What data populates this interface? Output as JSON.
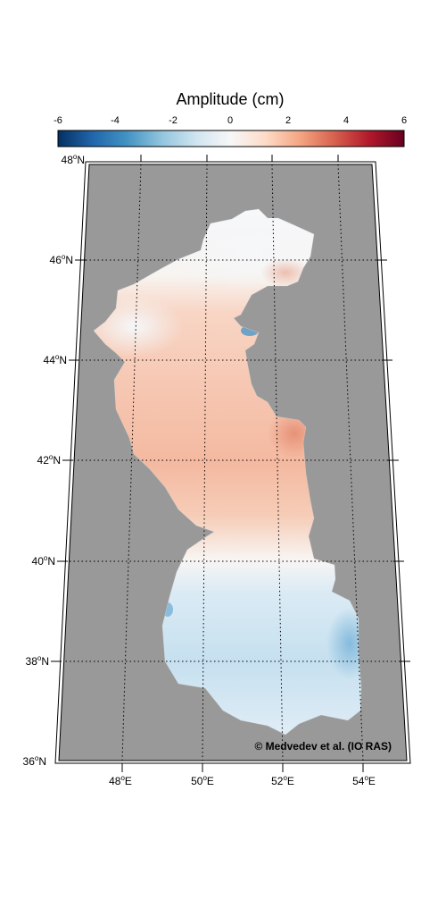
{
  "colorbar": {
    "title": "Amplitude (cm)",
    "ticks": [
      "-6",
      "-4",
      "-2",
      "0",
      "2",
      "4",
      "6"
    ],
    "colors": [
      "#053061",
      "#2166ac",
      "#4393c3",
      "#92c5de",
      "#d1e5f0",
      "#f7f7f7",
      "#fddbc7",
      "#f4a582",
      "#d6604d",
      "#b2182b",
      "#67001f"
    ]
  },
  "map": {
    "latitudes": [
      {
        "deg": "48",
        "hem": "N"
      },
      {
        "deg": "46",
        "hem": "N"
      },
      {
        "deg": "44",
        "hem": "N"
      },
      {
        "deg": "42",
        "hem": "N"
      },
      {
        "deg": "40",
        "hem": "N"
      },
      {
        "deg": "38",
        "hem": "N"
      },
      {
        "deg": "36",
        "hem": "N"
      }
    ],
    "longitudes": [
      {
        "deg": "48",
        "hem": "E"
      },
      {
        "deg": "50",
        "hem": "E"
      },
      {
        "deg": "52",
        "hem": "E"
      },
      {
        "deg": "54",
        "hem": "E"
      }
    ],
    "land_color": "#999999",
    "credit": "© Medvedev et al. (IO RAS)"
  }
}
